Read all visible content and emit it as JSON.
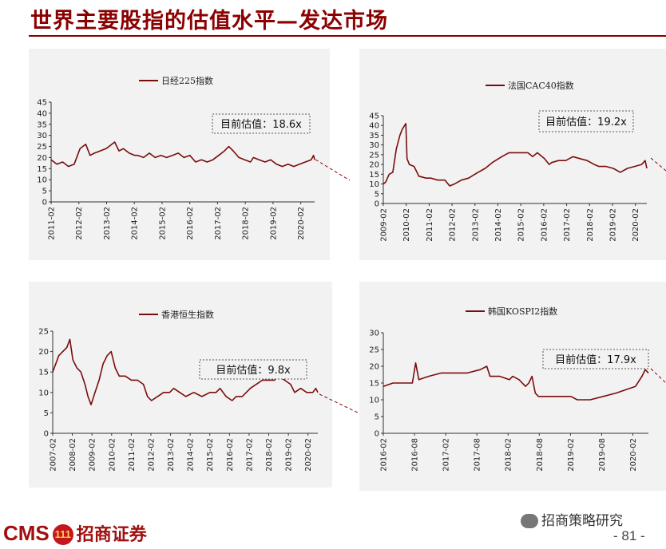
{
  "page": {
    "title": "世界主要股指的估值水平—发达市场",
    "footer_logo_en": "CMS",
    "footer_badge": "111",
    "footer_logo_cn": "招商证券",
    "wechat_label": "招商策略研究",
    "page_number": "- 81 -",
    "accent_color": "#8b0000"
  },
  "chart_data": [
    {
      "type": "line",
      "legend": "日经225指数",
      "estimate_label": "目前估值：18.6x",
      "ylim": [
        0,
        45
      ],
      "yticks": [
        0,
        5,
        10,
        15,
        20,
        25,
        30,
        35,
        40,
        45
      ],
      "x_tick_labels": [
        "2011-02",
        "2012-02",
        "2013-02",
        "2014-02",
        "2015-02",
        "2016-02",
        "2017-02",
        "2018-02",
        "2019-02",
        "2020-02"
      ],
      "series": [
        {
          "color": "#7a0c0c",
          "x": [
            2011.0,
            2011.2,
            2011.4,
            2011.6,
            2011.8,
            2012.0,
            2012.2,
            2012.35,
            2012.5,
            2012.7,
            2012.9,
            2013.0,
            2013.2,
            2013.35,
            2013.5,
            2013.7,
            2013.9,
            2014.0,
            2014.2,
            2014.4,
            2014.6,
            2014.8,
            2015.0,
            2015.2,
            2015.4,
            2015.6,
            2015.8,
            2016.0,
            2016.2,
            2016.4,
            2016.6,
            2016.8,
            2017.0,
            2017.15,
            2017.3,
            2017.5,
            2017.7,
            2017.9,
            2018.0,
            2018.2,
            2018.4,
            2018.6,
            2018.8,
            2019.0,
            2019.2,
            2019.4,
            2019.6,
            2019.8,
            2020.0,
            2020.08,
            2020.12
          ],
          "y": [
            19,
            17,
            18,
            16,
            17,
            24,
            26,
            21,
            22,
            23,
            24,
            25,
            27,
            23,
            24,
            22,
            21,
            21,
            20,
            22,
            20,
            21,
            20,
            21,
            22,
            20,
            21,
            18,
            19,
            18,
            19,
            21,
            23,
            25,
            23,
            20,
            19,
            18,
            20,
            19,
            18,
            19,
            17,
            16,
            17,
            16,
            17,
            18,
            19,
            21,
            19
          ]
        }
      ]
    },
    {
      "type": "line",
      "legend": "法国CAC40指数",
      "estimate_label": "目前估值：19.2x",
      "ylim": [
        0,
        45
      ],
      "yticks": [
        0,
        5,
        10,
        15,
        20,
        25,
        30,
        35,
        40,
        45
      ],
      "x_tick_labels": [
        "2009-02",
        "2010-02",
        "2011-02",
        "2012-02",
        "2013-02",
        "2014-02",
        "2015-02",
        "2016-02",
        "2017-02",
        "2018-02",
        "2019-02",
        "2020-02"
      ],
      "series": [
        {
          "color": "#7a0c0c",
          "x": [
            2009.0,
            2009.1,
            2009.25,
            2009.4,
            2009.55,
            2009.7,
            2009.8,
            2009.9,
            2009.95,
            2010.0,
            2010.1,
            2010.3,
            2010.5,
            2010.8,
            2011.0,
            2011.3,
            2011.6,
            2011.8,
            2012.0,
            2012.3,
            2012.6,
            2013.0,
            2013.3,
            2013.6,
            2014.0,
            2014.3,
            2014.6,
            2014.9,
            2015.1,
            2015.3,
            2015.5,
            2015.8,
            2016.0,
            2016.1,
            2016.4,
            2016.7,
            2017.0,
            2017.3,
            2017.6,
            2017.9,
            2018.1,
            2018.4,
            2018.7,
            2019.0,
            2019.3,
            2019.6,
            2019.9,
            2020.05,
            2020.12
          ],
          "y": [
            10,
            11,
            15,
            16,
            28,
            35,
            38,
            40,
            41,
            23,
            20,
            19,
            14,
            13,
            13,
            12,
            12,
            9,
            10,
            12,
            13,
            16,
            18,
            21,
            24,
            26,
            26,
            26,
            26,
            24,
            26,
            23,
            20,
            21,
            22,
            22,
            24,
            23,
            22,
            20,
            19,
            19,
            18,
            16,
            18,
            19,
            20,
            22,
            18
          ]
        }
      ]
    },
    {
      "type": "line",
      "legend": "香港恒生指数",
      "estimate_label": "目前估值：9.8x",
      "ylim": [
        0,
        25
      ],
      "yticks": [
        0,
        5,
        10,
        15,
        20,
        25
      ],
      "x_tick_labels": [
        "2007-02",
        "2008-02",
        "2009-02",
        "2010-02",
        "2011-02",
        "2012-02",
        "2013-02",
        "2014-02",
        "2015-02",
        "2016-02",
        "2017-02",
        "2018-02",
        "2019-02",
        "2020-02"
      ],
      "series": [
        {
          "color": "#7a0c0c",
          "x": [
            2007.0,
            2007.15,
            2007.3,
            2007.5,
            2007.7,
            2007.85,
            2008.0,
            2008.2,
            2008.4,
            2008.6,
            2008.75,
            2008.9,
            2009.1,
            2009.3,
            2009.5,
            2009.7,
            2009.9,
            2010.1,
            2010.3,
            2010.6,
            2010.9,
            2011.2,
            2011.5,
            2011.7,
            2011.9,
            2012.2,
            2012.5,
            2012.8,
            2013.0,
            2013.3,
            2013.6,
            2014.0,
            2014.4,
            2014.8,
            2015.1,
            2015.3,
            2015.6,
            2015.9,
            2016.1,
            2016.4,
            2016.8,
            2017.1,
            2017.4,
            2017.7,
            2018.0,
            2018.2,
            2018.5,
            2018.8,
            2019.0,
            2019.3,
            2019.6,
            2019.9,
            2020.05,
            2020.15
          ],
          "y": [
            15,
            17,
            19,
            20,
            21,
            23,
            18,
            16,
            15,
            12,
            9,
            7,
            10,
            13,
            17,
            19,
            20,
            16,
            14,
            14,
            13,
            13,
            12,
            9,
            8,
            9,
            10,
            10,
            11,
            10,
            9,
            10,
            9,
            10,
            10,
            11,
            9,
            8,
            9,
            9,
            11,
            12,
            13,
            13,
            13,
            14,
            13,
            12,
            10,
            11,
            10,
            10,
            11,
            10
          ]
        }
      ]
    },
    {
      "type": "line",
      "legend": "韩国KOSPI2指数",
      "estimate_label": "目前估值：17.9x",
      "ylim": [
        0,
        30
      ],
      "yticks": [
        0,
        5,
        10,
        15,
        20,
        25,
        30
      ],
      "x_tick_labels": [
        "2016-02",
        "2016-08",
        "2017-02",
        "2017-08",
        "2018-02",
        "2018-08",
        "2019-02",
        "2019-08",
        "2020-02"
      ],
      "series": [
        {
          "color": "#7a0c0c",
          "x": [
            2016.0,
            2016.15,
            2016.3,
            2016.45,
            2016.5,
            2016.55,
            2016.7,
            2016.9,
            2017.1,
            2017.3,
            2017.5,
            2017.6,
            2017.65,
            2017.8,
            2017.95,
            2018.0,
            2018.1,
            2018.2,
            2018.25,
            2018.3,
            2018.35,
            2018.4,
            2018.5,
            2018.7,
            2018.9,
            2019.0,
            2019.2,
            2019.4,
            2019.6,
            2019.75,
            2019.9,
            2020.0,
            2020.05,
            2020.1
          ],
          "y": [
            14,
            15,
            15,
            15,
            21,
            16,
            17,
            18,
            18,
            18,
            19,
            20,
            17,
            17,
            16,
            17,
            16,
            14,
            15,
            17,
            12,
            11,
            11,
            11,
            11,
            10,
            10,
            11,
            12,
            13,
            14,
            17,
            19,
            18
          ]
        }
      ]
    }
  ]
}
